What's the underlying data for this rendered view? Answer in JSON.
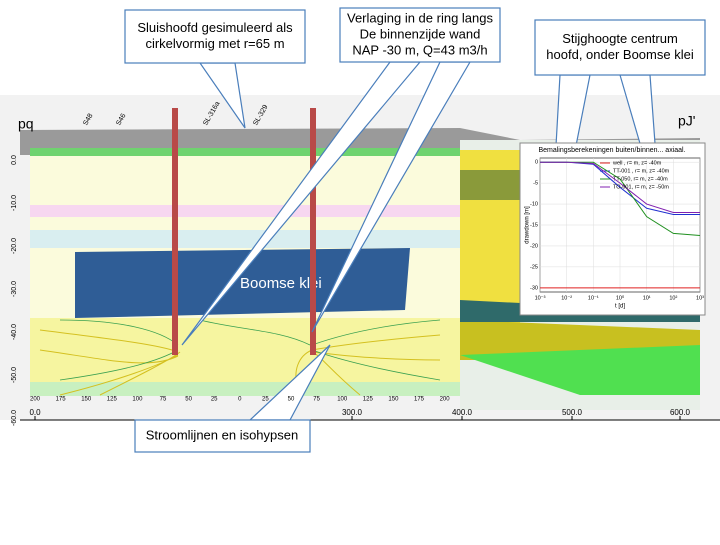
{
  "callouts": [
    [
      "Sluishoofd gesimuleerd als",
      "cirkelvormig met r=65 m"
    ],
    [
      "Verlaging in de ring langs",
      "De binnenzijde wand",
      "NAP -30 m, Q=43 m3/h"
    ],
    [
      "Stijghoogte centrum",
      "hoofd, onder Boomse klei"
    ],
    [
      "Stroomlijnen en isohypsen"
    ]
  ],
  "section": {
    "label_left": "pq",
    "label_right": "pJ'",
    "layer_label": "Boomse klei",
    "boreholes": [
      "S48",
      "S46",
      "SL-316a",
      "SL-329"
    ],
    "depth_ticks": [
      "0.0",
      "-10.0",
      "-20.0",
      "-30.0",
      "-40.0",
      "-50.0",
      "-60.0"
    ],
    "distance_ticks": [
      "0.0",
      "300.0",
      "400.0",
      "500.0",
      "600.0"
    ],
    "radius_ticks": [
      "200",
      "175",
      "150",
      "125",
      "100",
      "75",
      "50",
      "25",
      "0",
      "25",
      "50",
      "75",
      "100",
      "125",
      "150",
      "175",
      "200"
    ]
  },
  "chart_data": {
    "type": "line",
    "title": "Bemalingsberekeningen buiten/binnen... axiaal.",
    "x_label": "t [d]",
    "y_label": "drawdown [m]",
    "log_x": true,
    "grid": true,
    "legend": "upper right",
    "x": [
      0.001,
      0.01,
      0.1,
      1,
      10,
      100,
      1000
    ],
    "series": [
      {
        "name": "well , r= m, z= -40m",
        "color": "#e02020",
        "values": [
          -30,
          -30,
          -30,
          -30,
          -30,
          -30,
          -30
        ]
      },
      {
        "name": "TT-001 , r= m, z= -40m",
        "color": "#2030d0",
        "values": [
          0,
          0,
          -0.5,
          -6,
          -11,
          -12.5,
          -12.5
        ]
      },
      {
        "name": "TT-050, r= m, z= -40m",
        "color": "#209020",
        "values": [
          0,
          0,
          0,
          -4,
          -13,
          -17,
          -17.5
        ]
      },
      {
        "name": "TO-001, r= m, z= -50m",
        "color": "#8020b0",
        "values": [
          0,
          0,
          -0.3,
          -5,
          -10,
          -12,
          -12
        ]
      }
    ],
    "xlim": [
      0.001,
      1000
    ],
    "xticks": [
      {
        "value": 0.001,
        "label": "10⁻³"
      },
      {
        "value": 0.01,
        "label": "10⁻²"
      },
      {
        "value": 0.1,
        "label": "10⁻¹"
      },
      {
        "value": 1,
        "label": "10⁰"
      },
      {
        "value": 10,
        "label": "10¹"
      },
      {
        "value": 100,
        "label": "10²"
      },
      {
        "value": 1000,
        "label": "10³"
      }
    ],
    "ylim": [
      -31,
      1
    ],
    "yticks": [
      0,
      -5,
      -10,
      -15,
      -20,
      -25,
      -30
    ]
  }
}
